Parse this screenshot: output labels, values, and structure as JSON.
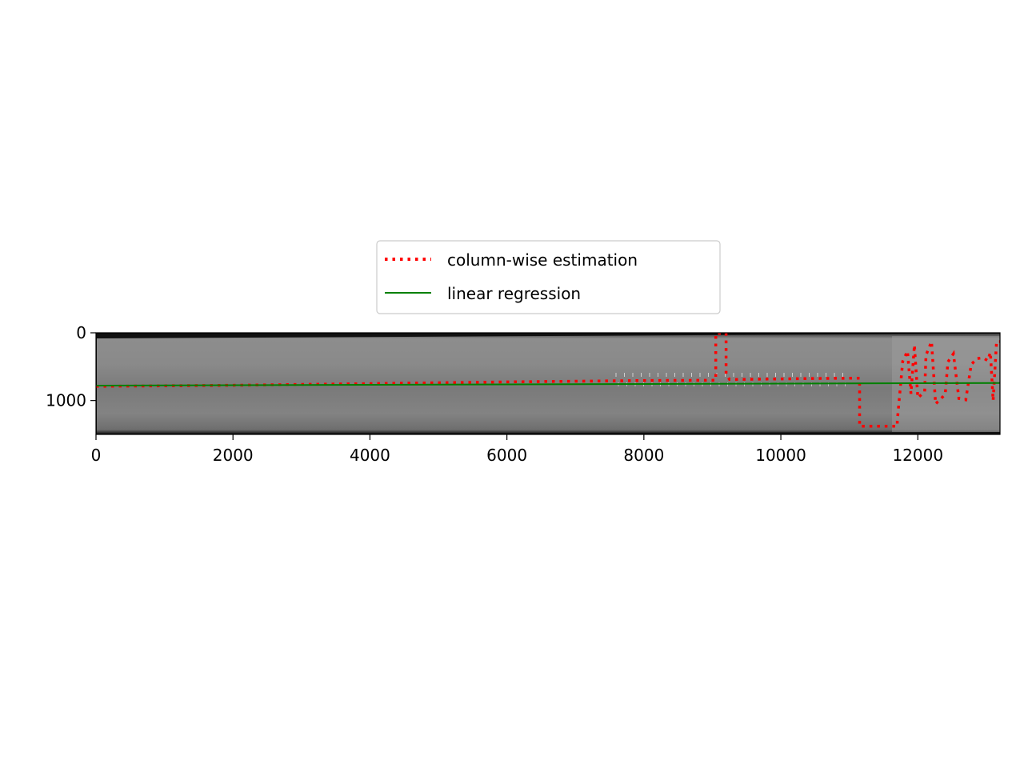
{
  "chart_data": {
    "type": "line",
    "background": "grayscale image of a horizontal strip",
    "x": [
      0,
      13200
    ],
    "xlim": [
      0,
      13200
    ],
    "ylim": [
      1500,
      0
    ],
    "xticks": [
      0,
      2000,
      4000,
      6000,
      8000,
      10000,
      12000
    ],
    "yticks": [
      0,
      1000
    ],
    "legend": {
      "placement": "above plot, centered",
      "entries": [
        {
          "label": "column-wise estimation",
          "color": "#ff0000",
          "style": "dotted"
        },
        {
          "label": "linear regression",
          "color": "#008000",
          "style": "solid"
        }
      ]
    },
    "series": [
      {
        "name": "column-wise estimation",
        "color": "#ff0000",
        "style": "dotted",
        "points": [
          [
            0,
            790
          ],
          [
            2000,
            775
          ],
          [
            4000,
            750
          ],
          [
            6000,
            725
          ],
          [
            8000,
            705
          ],
          [
            9050,
            700
          ],
          [
            9050,
            10
          ],
          [
            9200,
            10
          ],
          [
            9200,
            605
          ],
          [
            9250,
            690
          ],
          [
            10500,
            675
          ],
          [
            11150,
            670
          ],
          [
            11150,
            1380
          ],
          [
            11700,
            1380
          ],
          [
            11700,
            1300
          ],
          [
            11780,
            420
          ],
          [
            11850,
            270
          ],
          [
            11900,
            900
          ],
          [
            11950,
            180
          ],
          [
            12000,
            960
          ],
          [
            12100,
            870
          ],
          [
            12120,
            330
          ],
          [
            12200,
            130
          ],
          [
            12260,
            1050
          ],
          [
            12400,
            910
          ],
          [
            12440,
            430
          ],
          [
            12520,
            310
          ],
          [
            12600,
            970
          ],
          [
            12700,
            990
          ],
          [
            12780,
            470
          ],
          [
            12860,
            380
          ],
          [
            12950,
            370
          ],
          [
            13020,
            410
          ],
          [
            13060,
            290
          ],
          [
            13100,
            1000
          ],
          [
            13150,
            130
          ],
          [
            13200,
            130
          ]
        ]
      },
      {
        "name": "linear regression",
        "color": "#008000",
        "style": "solid",
        "points": [
          [
            0,
            780
          ],
          [
            13200,
            740
          ]
        ]
      }
    ]
  }
}
